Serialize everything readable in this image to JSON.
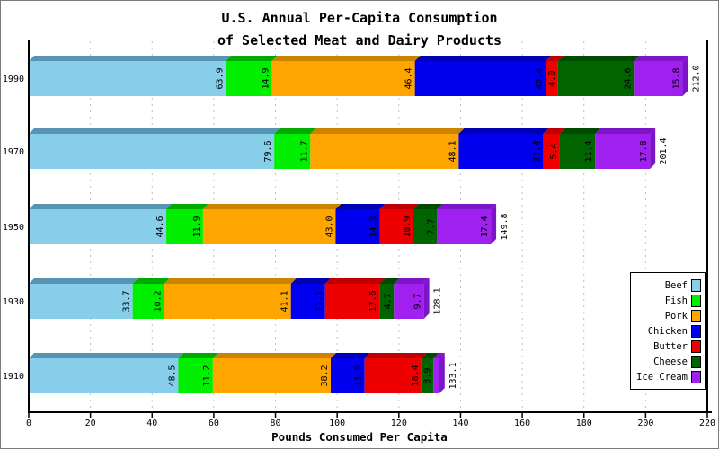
{
  "title": {
    "line1": "U.S. Annual Per-Capita Consumption",
    "line2": "of Selected Meat and Dairy Products"
  },
  "chart_data": {
    "type": "bar",
    "orientation": "horizontal",
    "stacked": true,
    "grid": "dashed-vertical",
    "legend_position": "right-middle",
    "xlabel": "Pounds Consumed Per Capita",
    "xlim": [
      0,
      220
    ],
    "xticks": [
      0,
      20,
      40,
      60,
      80,
      100,
      120,
      140,
      160,
      180,
      200,
      220
    ],
    "categories": [
      "1990",
      "1970",
      "1950",
      "1930",
      "1910"
    ],
    "series": [
      {
        "name": "Beef",
        "color": "#87CEEB",
        "bevel": "#5794B4",
        "values": [
          63.9,
          79.6,
          44.6,
          33.7,
          48.5
        ]
      },
      {
        "name": "Fish",
        "color": "#00EE00",
        "bevel": "#00AA00",
        "values": [
          14.9,
          11.7,
          11.9,
          10.2,
          11.2
        ]
      },
      {
        "name": "Pork",
        "color": "#FFA500",
        "bevel": "#CC8400",
        "values": [
          46.4,
          48.1,
          43.0,
          41.1,
          38.2
        ]
      },
      {
        "name": "Chicken",
        "color": "#0000EE",
        "bevel": "#0000B4",
        "values": [
          42.4,
          27.4,
          14.3,
          11.1,
          11.0
        ]
      },
      {
        "name": "Butter",
        "color": "#EE0000",
        "bevel": "#BE0000",
        "values": [
          4.0,
          5.4,
          10.9,
          17.6,
          18.4
        ]
      },
      {
        "name": "Cheese",
        "color": "#006400",
        "bevel": "#004900",
        "values": [
          24.6,
          11.4,
          7.7,
          4.7,
          3.9
        ]
      },
      {
        "name": "Ice Cream",
        "color": "#A020F0",
        "bevel": "#7D14C8",
        "values": [
          15.8,
          17.8,
          17.4,
          9.7,
          1.9
        ]
      }
    ],
    "totals": [
      "212.0",
      "201.4",
      "149.8",
      "128.1",
      "133.1"
    ],
    "min_segment_label_value": 3,
    "colors": {
      "axis": "#000000",
      "gridline": "#C0C0C0",
      "label_text": "#000000",
      "background": "#FFFFFF"
    }
  }
}
